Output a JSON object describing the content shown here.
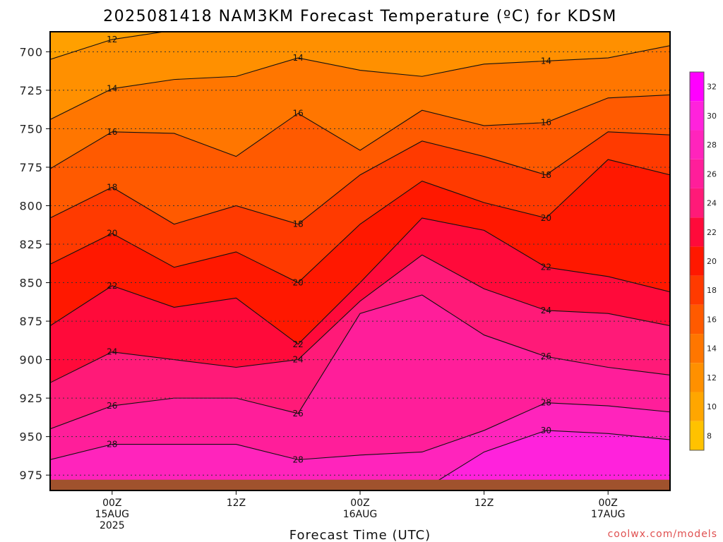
{
  "chart_data": {
    "type": "heatmap",
    "title": "2025081418 NAM3KM Forecast Temperature (ºC) for KDSM",
    "xlabel": "Forecast Time (UTC)",
    "ylabel": "",
    "x_range_hours": [
      -6,
      54
    ],
    "y_levels_hpa": [
      700,
      725,
      750,
      775,
      800,
      825,
      850,
      875,
      900,
      925,
      950,
      975
    ],
    "y_range_hpa": [
      687,
      985
    ],
    "x_ticks": [
      {
        "hours": 0,
        "lines": [
          "00Z",
          "15AUG",
          "2025"
        ]
      },
      {
        "hours": 12,
        "lines": [
          "12Z"
        ]
      },
      {
        "hours": 24,
        "lines": [
          "00Z",
          "16AUG"
        ]
      },
      {
        "hours": 36,
        "lines": [
          "12Z"
        ]
      },
      {
        "hours": 48,
        "lines": [
          "00Z",
          "17AUG"
        ]
      }
    ],
    "colorbar": {
      "values": [
        8,
        10,
        12,
        14,
        16,
        18,
        20,
        22,
        24,
        26,
        28,
        30,
        32
      ],
      "colors": [
        "#ffc200",
        "#ffa600",
        "#ff9000",
        "#ff7600",
        "#ff5a00",
        "#ff3a00",
        "#ff1800",
        "#ff0a3a",
        "#ff1a78",
        "#ff1e9a",
        "#ff24bc",
        "#ff22dc",
        "#ff00ff"
      ]
    },
    "x_hours": [
      -6,
      0,
      6,
      12,
      18,
      24,
      30,
      36,
      42,
      48,
      54
    ],
    "series": [
      {
        "name": "12",
        "pressure": [
          705,
          692,
          686,
          686,
          686,
          686,
          686,
          686,
          686,
          686,
          686
        ]
      },
      {
        "name": "14",
        "pressure": [
          744,
          724,
          718,
          716,
          704,
          712,
          716,
          708,
          706,
          704,
          696
        ]
      },
      {
        "name": "16",
        "pressure": [
          776,
          752,
          753,
          768,
          740,
          764,
          738,
          748,
          746,
          730,
          728
        ]
      },
      {
        "name": "18",
        "pressure": [
          808,
          788,
          812,
          800,
          812,
          780,
          758,
          768,
          780,
          752,
          754
        ]
      },
      {
        "name": "20",
        "pressure": [
          838,
          818,
          840,
          830,
          850,
          812,
          784,
          798,
          808,
          770,
          780
        ]
      },
      {
        "name": "22",
        "pressure": [
          878,
          852,
          866,
          860,
          890,
          850,
          808,
          816,
          840,
          846,
          856
        ]
      },
      {
        "name": "24",
        "pressure": [
          915,
          895,
          900,
          905,
          900,
          862,
          832,
          854,
          868,
          870,
          878
        ]
      },
      {
        "name": "26",
        "pressure": [
          945,
          930,
          925,
          925,
          935,
          870,
          858,
          884,
          898,
          905,
          910
        ]
      },
      {
        "name": "28",
        "pressure": [
          965,
          955,
          955,
          955,
          965,
          962,
          960,
          946,
          928,
          930,
          934
        ]
      },
      {
        "name": "30",
        "pressure": [
          985,
          985,
          985,
          985,
          985,
          985,
          985,
          960,
          946,
          948,
          952
        ]
      }
    ],
    "surface_pressure_hpa": 978,
    "grid": true,
    "legend": "right"
  },
  "credit": "coolwx.com/models"
}
